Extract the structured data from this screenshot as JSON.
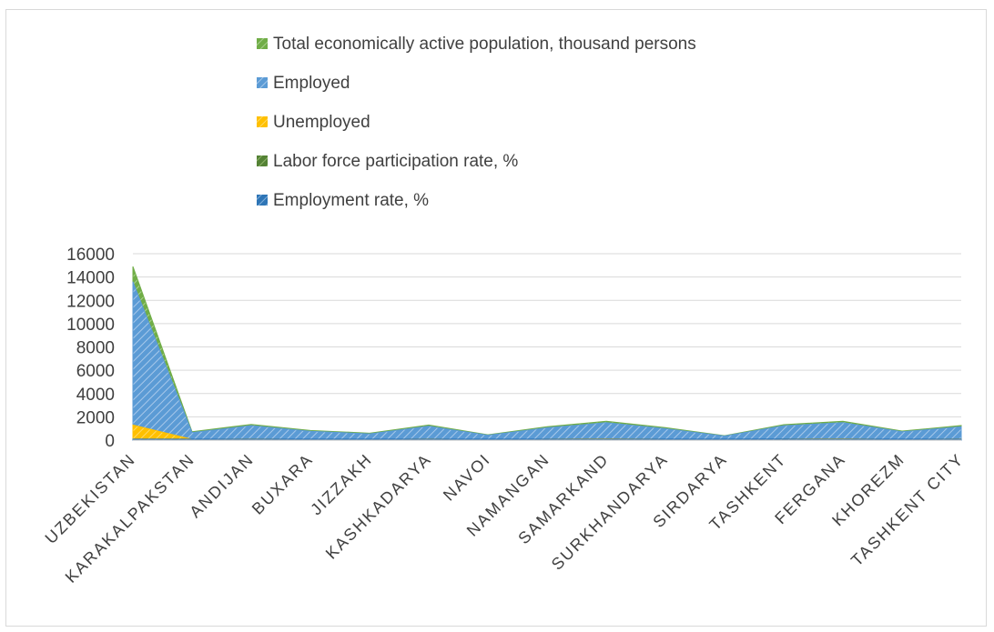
{
  "chart_data": {
    "type": "area",
    "categories": [
      "UZBEKISTAN",
      "KARAKALPAKSTAN",
      "ANDIJAN",
      "BUXARA",
      "JIZZAKH",
      "KASHKADARYA",
      "NAVOI",
      "NAMANGAN",
      "SAMARKAND",
      "SURKHANDARYA",
      "SIRDARYA",
      "TASHKENT",
      "FERGANA",
      "KHOREZM",
      "TASHKENT CITY"
    ],
    "series": [
      {
        "name": "Total economically active population, thousand persons",
        "color": "#70ad47",
        "values": [
          14900,
          720,
          1350,
          830,
          600,
          1300,
          460,
          1150,
          1620,
          1070,
          380,
          1330,
          1620,
          780,
          1250
        ]
      },
      {
        "name": "Employed",
        "color": "#5b9bd5",
        "values": [
          13600,
          650,
          1250,
          760,
          540,
          1200,
          420,
          1060,
          1500,
          990,
          350,
          1240,
          1500,
          720,
          1150
        ]
      },
      {
        "name": "Unemployed",
        "color": "#ffc000",
        "values": [
          1300,
          70,
          100,
          70,
          60,
          100,
          40,
          90,
          120,
          80,
          30,
          90,
          120,
          60,
          100
        ]
      },
      {
        "name": "Labor force participation rate, %",
        "color": "#548235",
        "values": [
          74,
          72,
          75,
          74,
          72,
          74,
          75,
          74,
          75,
          74,
          73,
          74,
          75,
          73,
          72
        ]
      },
      {
        "name": "Employment rate, %",
        "color": "#2e75b6",
        "values": [
          91,
          90,
          92,
          92,
          90,
          92,
          92,
          92,
          92,
          92,
          91,
          93,
          92,
          92,
          92
        ]
      }
    ],
    "y_ticks": [
      "0",
      "2000",
      "4000",
      "6000",
      "8000",
      "10000",
      "12000",
      "14000",
      "16000"
    ],
    "ylim": [
      0,
      16000
    ],
    "grid": true,
    "legend_position": "top"
  }
}
